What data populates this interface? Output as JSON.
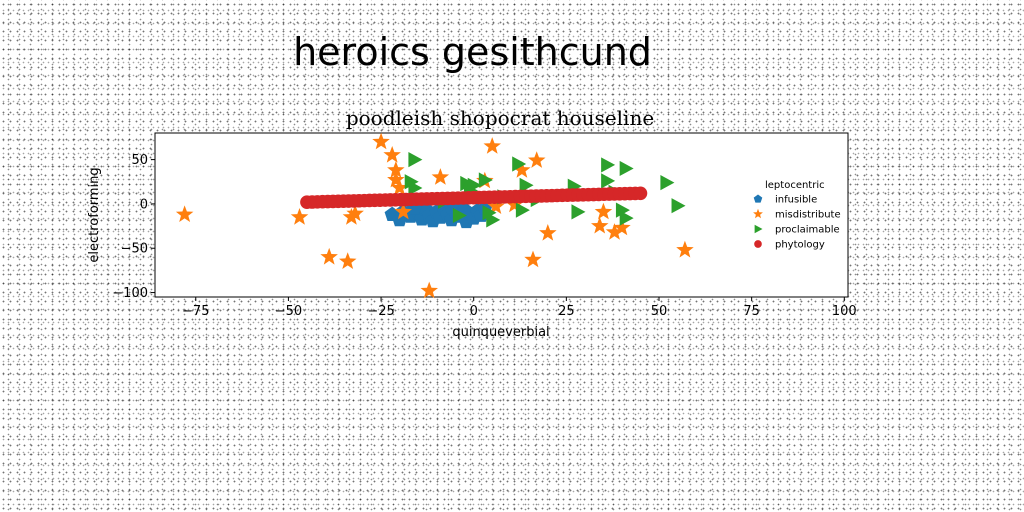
{
  "figure": {
    "suptitle": "heroics gesithcund"
  },
  "chart_data": {
    "type": "scatter",
    "title": "poodleish shopocrat houseline",
    "xlabel": "quinqueverbial",
    "ylabel": "electroforming",
    "xlim": [
      -86,
      101
    ],
    "ylim": [
      -105,
      80
    ],
    "xticks": [
      -75,
      -50,
      -25,
      0,
      25,
      50,
      75,
      100
    ],
    "xtick_labels": [
      "−75",
      "−50",
      "−25",
      "0",
      "25",
      "50",
      "75",
      "100"
    ],
    "yticks": [
      50,
      0,
      -50,
      -100
    ],
    "ytick_labels": [
      "50",
      "0",
      "−50",
      "−100"
    ],
    "legend": {
      "title": "leptocentric",
      "position": "right"
    },
    "series": [
      {
        "name": "infusible",
        "marker": "pentagon",
        "color": "#1f77b4",
        "points": [
          [
            -22,
            -12
          ],
          [
            -20,
            -18
          ],
          [
            -19,
            -9
          ],
          [
            -17,
            -14
          ],
          [
            -15,
            -10
          ],
          [
            -14,
            -17
          ],
          [
            -13,
            -6
          ],
          [
            -12,
            -13
          ],
          [
            -11,
            -19
          ],
          [
            -10,
            -9
          ],
          [
            -9,
            -15
          ],
          [
            -8,
            -6
          ],
          [
            -7,
            -12
          ],
          [
            -6,
            -18
          ],
          [
            -5,
            -9
          ],
          [
            -4,
            -14
          ],
          [
            -3,
            -5
          ],
          [
            -2,
            -20
          ],
          [
            -1,
            -11
          ],
          [
            0,
            -16
          ],
          [
            1,
            -8
          ],
          [
            2,
            -13
          ],
          [
            3,
            -5
          ],
          [
            -16,
            -5
          ],
          [
            -6,
            -3
          ]
        ]
      },
      {
        "name": "misdistribute",
        "marker": "star",
        "color": "#ff7f0e",
        "points": [
          [
            -78,
            -12
          ],
          [
            -47,
            -15
          ],
          [
            -39,
            -60
          ],
          [
            -34,
            -65
          ],
          [
            -33,
            -15
          ],
          [
            -32,
            -11
          ],
          [
            -25,
            70
          ],
          [
            -22,
            55
          ],
          [
            -21,
            38
          ],
          [
            -21,
            27
          ],
          [
            -20,
            18
          ],
          [
            -19,
            -9
          ],
          [
            -12,
            -98
          ],
          [
            -9,
            30
          ],
          [
            3,
            26
          ],
          [
            5,
            65
          ],
          [
            6,
            -3
          ],
          [
            11,
            -1
          ],
          [
            13,
            38
          ],
          [
            16,
            -63
          ],
          [
            17,
            49
          ],
          [
            20,
            -33
          ],
          [
            34,
            -25
          ],
          [
            35,
            -9
          ],
          [
            38,
            -32
          ],
          [
            40,
            -27
          ],
          [
            57,
            -52
          ]
        ]
      },
      {
        "name": "proclaimable",
        "marker": "triangle-right",
        "color": "#2ca02c",
        "points": [
          [
            -16,
            50
          ],
          [
            -17,
            25
          ],
          [
            -16,
            18
          ],
          [
            -8,
            3
          ],
          [
            -4,
            -13
          ],
          [
            -2,
            23
          ],
          [
            -1,
            15
          ],
          [
            0,
            21
          ],
          [
            4,
            -10
          ],
          [
            5,
            -18
          ],
          [
            8,
            8
          ],
          [
            12,
            45
          ],
          [
            13,
            -7
          ],
          [
            14,
            21
          ],
          [
            17,
            5
          ],
          [
            27,
            20
          ],
          [
            28,
            -9
          ],
          [
            36,
            44
          ],
          [
            36,
            26
          ],
          [
            40,
            -7
          ],
          [
            41,
            -16
          ],
          [
            41,
            40
          ],
          [
            52,
            24
          ],
          [
            55,
            -2
          ],
          [
            38,
            13
          ],
          [
            3,
            27
          ]
        ]
      },
      {
        "name": "phytology",
        "marker": "circle",
        "color": "#d62728",
        "line_points": {
          "x_start": -45,
          "x_end": 45,
          "y_start": 2,
          "y_end": 12,
          "count": 65
        }
      }
    ]
  }
}
